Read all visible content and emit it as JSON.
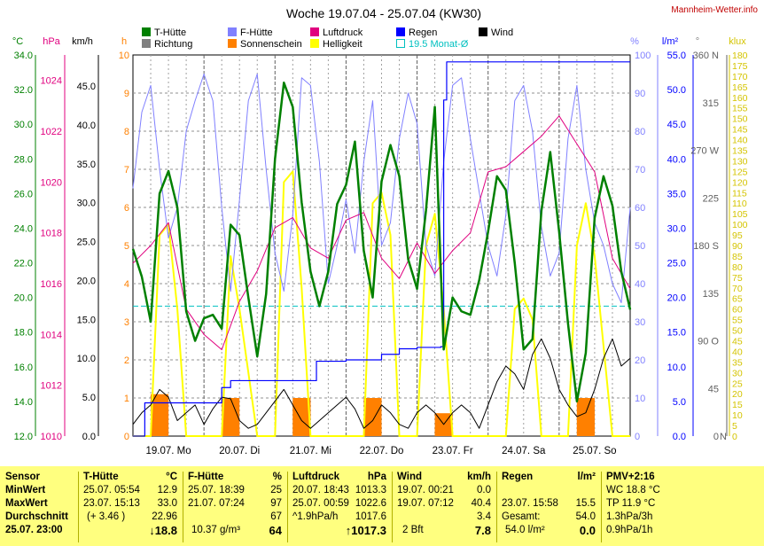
{
  "header": {
    "title": "Woche 19.07.04 - 25.07.04 (KW30)",
    "site": "Mannheim-Wetter.info"
  },
  "legend": [
    {
      "label": "T-Hütte",
      "color": "#008000",
      "box": "fill"
    },
    {
      "label": "Richtung",
      "color": "#808080",
      "box": "fill"
    },
    {
      "label": "F-Hütte",
      "color": "#8080ff",
      "box": "fill"
    },
    {
      "label": "Sonnenschein",
      "color": "#ff8000",
      "box": "fill"
    },
    {
      "label": "Luftdruck",
      "color": "#e0007f",
      "box": "fill"
    },
    {
      "label": "Helligkeit",
      "color": "#ffff00",
      "box": "fill"
    },
    {
      "label": "Regen",
      "color": "#0000ff",
      "box": "fill"
    },
    {
      "label": "19.5 Monat-Ø",
      "color": "#00c0c0",
      "box": "outline"
    },
    {
      "label": "Wind",
      "color": "#000000",
      "box": "fill"
    }
  ],
  "axes": {
    "temp": {
      "unit": "°C",
      "ticks": [
        "12.0",
        "14.0",
        "16.0",
        "18.0",
        "20.0",
        "22.0",
        "24.0",
        "26.0",
        "28.0",
        "30.0",
        "32.0",
        "34.0"
      ],
      "min": 12,
      "max": 34
    },
    "pressure": {
      "unit": "hPa",
      "ticks": [
        "1010",
        "1012",
        "1014",
        "1016",
        "1018",
        "1020",
        "1022",
        "1024"
      ],
      "min": 1010,
      "max": 1025
    },
    "wind": {
      "unit": "km/h",
      "ticks": [
        "0.0",
        "5.0",
        "10.0",
        "15.0",
        "20.0",
        "25.0",
        "30.0",
        "35.0",
        "40.0",
        "45.0"
      ],
      "min": 0,
      "max": 49
    },
    "sun": {
      "unit": "h",
      "ticks": [
        "0",
        "1",
        "2",
        "3",
        "4",
        "5",
        "6",
        "7",
        "8",
        "9",
        "10"
      ],
      "min": 0,
      "max": 10
    },
    "humidity": {
      "unit": "%",
      "ticks": [
        "0",
        "10",
        "20",
        "30",
        "40",
        "50",
        "60",
        "70",
        "80",
        "90",
        "100"
      ],
      "min": 0,
      "max": 100
    },
    "rain": {
      "unit": "l/m²",
      "ticks": [
        "0.0",
        "5.0",
        "10.0",
        "15.0",
        "20.0",
        "25.0",
        "30.0",
        "35.0",
        "40.0",
        "45.0",
        "50.0",
        "55.0"
      ],
      "min": 0,
      "max": 55
    },
    "direction": {
      "unit": "°",
      "ticks": [
        "0",
        "45",
        "90 O",
        "135",
        "180 S",
        "225",
        "270 W",
        "315",
        "360 N"
      ],
      "min": 0,
      "max": 360
    },
    "direction_right": {
      "ticks": [
        "N",
        "",
        "",
        "",
        "",
        "",
        "",
        "",
        ""
      ]
    },
    "lux": {
      "unit": "klux",
      "ticks": [
        "0",
        "5",
        "10",
        "15",
        "20",
        "25",
        "30",
        "35",
        "40",
        "45",
        "50",
        "55",
        "60",
        "65",
        "70",
        "75",
        "80",
        "85",
        "90",
        "95",
        "100",
        "105",
        "110",
        "115",
        "120",
        "125",
        "130",
        "135",
        "140",
        "145",
        "150",
        "155",
        "160",
        "165",
        "170",
        "175",
        "180"
      ],
      "min": 0,
      "max": 180
    }
  },
  "days": [
    "19.07. Mo",
    "20.07. Di",
    "21.07. Mi",
    "22.07. Do",
    "23.07. Fr",
    "24.07. Sa",
    "25.07. So"
  ],
  "chart_data": {
    "type": "line",
    "title": "Woche 19.07.04 - 25.07.04 (KW30)",
    "x_unit": "hours since 19.07. 00:00",
    "x_range": [
      0,
      168
    ],
    "monthly_avg_temp": 19.5,
    "series": [
      {
        "name": "T-Hütte",
        "unit": "°C",
        "x": [
          0,
          3,
          6,
          9,
          12,
          15,
          18,
          21,
          24,
          27,
          30,
          33,
          36,
          39,
          42,
          45,
          48,
          51,
          54,
          57,
          60,
          63,
          66,
          69,
          72,
          75,
          78,
          81,
          84,
          87,
          90,
          93,
          96,
          99,
          102,
          105,
          108,
          111,
          114,
          117,
          120,
          123,
          126,
          129,
          132,
          135,
          138,
          141,
          144,
          147,
          150,
          153,
          156,
          159,
          162,
          165,
          168
        ],
        "y": [
          22.8,
          21.2,
          18.6,
          26.0,
          27.3,
          25.2,
          19.2,
          17.5,
          18.8,
          19.0,
          18.2,
          24.2,
          23.6,
          20.0,
          16.6,
          20.2,
          28.0,
          32.4,
          31.0,
          25.5,
          21.5,
          19.5,
          21.5,
          25.4,
          26.5,
          29.0,
          22.7,
          20.0,
          26.7,
          28.8,
          27.0,
          22.2,
          20.5,
          25.0,
          31.0,
          17.0,
          20.0,
          19.2,
          19.0,
          21.0,
          23.8,
          27.0,
          26.2,
          22.0,
          17.0,
          17.6,
          25.0,
          28.4,
          23.8,
          18.5,
          14.0,
          16.8,
          24.6,
          27.0,
          25.3,
          21.5,
          19.3
        ]
      },
      {
        "name": "F-Hütte",
        "unit": "%",
        "x": [
          0,
          3,
          6,
          9,
          12,
          15,
          18,
          21,
          24,
          27,
          30,
          33,
          36,
          39,
          42,
          45,
          48,
          51,
          54,
          57,
          60,
          63,
          66,
          69,
          72,
          75,
          78,
          81,
          84,
          87,
          90,
          93,
          96,
          99,
          102,
          105,
          108,
          111,
          114,
          117,
          120,
          123,
          126,
          129,
          132,
          135,
          138,
          141,
          144,
          147,
          150,
          153,
          156,
          159,
          162,
          165,
          168
        ],
        "y": [
          65,
          85,
          92,
          70,
          52,
          60,
          80,
          88,
          95,
          88,
          60,
          38,
          62,
          88,
          95,
          70,
          48,
          38,
          58,
          94,
          92,
          72,
          40,
          50,
          62,
          48,
          72,
          88,
          50,
          56,
          78,
          90,
          82,
          50,
          42,
          72,
          92,
          94,
          78,
          64,
          50,
          42,
          58,
          88,
          92,
          80,
          55,
          42,
          48,
          78,
          92,
          70,
          56,
          50,
          40,
          35,
          60
        ]
      },
      {
        "name": "Luftdruck",
        "unit": "hPa",
        "x": [
          0,
          6,
          12,
          18,
          24,
          30,
          36,
          42,
          48,
          54,
          60,
          66,
          72,
          78,
          84,
          90,
          96,
          102,
          108,
          114,
          120,
          126,
          132,
          138,
          144,
          150,
          156,
          162,
          168
        ],
        "y": [
          1016.8,
          1017.5,
          1018.4,
          1015.0,
          1014.0,
          1013.4,
          1015.3,
          1016.5,
          1018.2,
          1018.6,
          1017.4,
          1017.0,
          1018.5,
          1018.8,
          1017.0,
          1016.2,
          1017.6,
          1016.4,
          1017.3,
          1018.0,
          1020.4,
          1020.6,
          1021.2,
          1021.8,
          1022.6,
          1021.5,
          1020.4,
          1017.0,
          1015.8
        ]
      },
      {
        "name": "Regen",
        "unit": "l/m²",
        "x": [
          0,
          3,
          4,
          12,
          25,
          30,
          33,
          48,
          60,
          62,
          72,
          84,
          90,
          96,
          102,
          104,
          105,
          106,
          108,
          120,
          168
        ],
        "y": [
          0,
          0,
          4.8,
          4.8,
          4.8,
          7.0,
          8.0,
          8.0,
          8.0,
          10.8,
          11.0,
          11.8,
          12.6,
          12.8,
          12.8,
          12.9,
          48.5,
          54.0,
          54.0,
          54.0,
          54.0
        ]
      },
      {
        "name": "Wind",
        "unit": "km/h",
        "x": [
          0,
          3,
          6,
          9,
          12,
          15,
          18,
          21,
          24,
          27,
          30,
          33,
          36,
          39,
          42,
          45,
          48,
          51,
          54,
          57,
          60,
          63,
          66,
          69,
          72,
          75,
          78,
          81,
          84,
          87,
          90,
          93,
          96,
          99,
          102,
          105,
          108,
          111,
          114,
          117,
          120,
          123,
          126,
          129,
          132,
          135,
          138,
          141,
          144,
          147,
          150,
          153,
          156,
          159,
          162,
          165,
          168
        ],
        "y": [
          1.5,
          3.0,
          4.0,
          6.0,
          5.0,
          2.0,
          3.0,
          4.0,
          1.5,
          3.5,
          5.0,
          4.8,
          2.0,
          1.0,
          1.5,
          3.0,
          4.5,
          6.0,
          4.0,
          2.0,
          1.0,
          2.0,
          3.0,
          4.0,
          5.0,
          3.5,
          1.0,
          2.0,
          4.0,
          3.0,
          1.5,
          1.0,
          3.0,
          4.0,
          3.0,
          1.5,
          3.0,
          4.0,
          3.0,
          1.0,
          4.0,
          7.0,
          9.0,
          8.0,
          6.0,
          10.5,
          12.5,
          10.0,
          6.0,
          4.0,
          2.5,
          3.0,
          6.0,
          10.0,
          12.5,
          9.0,
          10.0
        ]
      },
      {
        "name": "Sonnenschein",
        "unit": "h",
        "x": [
          0,
          12,
          24,
          36,
          48,
          60,
          72,
          84,
          96,
          108,
          120,
          132,
          144,
          156,
          168
        ],
        "y": [
          1.1,
          1.0,
          0.2,
          1.0,
          1.0,
          0.9,
          0.3,
          1.0,
          0.2,
          0.6,
          0,
          0,
          1.0,
          1.0,
          0
        ]
      },
      {
        "name": "Helligkeit",
        "unit": "klux",
        "x": [
          0,
          6,
          9,
          12,
          15,
          18,
          24,
          30,
          33,
          36,
          39,
          42,
          48,
          51,
          54,
          57,
          60,
          66,
          72,
          78,
          81,
          84,
          87,
          90,
          96,
          99,
          102,
          105,
          108,
          114,
          120,
          126,
          129,
          132,
          135,
          138,
          144,
          147,
          150,
          153,
          156,
          162,
          168
        ],
        "y": [
          0,
          0,
          95,
          100,
          60,
          0,
          0,
          0,
          85,
          60,
          30,
          0,
          0,
          120,
          125,
          70,
          0,
          0,
          0,
          0,
          110,
          115,
          95,
          0,
          0,
          90,
          105,
          60,
          0,
          0,
          0,
          0,
          60,
          65,
          55,
          0,
          0,
          0,
          90,
          110,
          85,
          0,
          0
        ]
      }
    ]
  },
  "panel": {
    "sensor": {
      "head": "Sensor",
      "rows": [
        "MinWert",
        "MaxWert",
        "Durchschnitt",
        "25.07. 23:00"
      ]
    },
    "temp": {
      "head": "T-Hütte",
      "unit": "°C",
      "min_time": "25.07.  05:54",
      "min_val": "12.9",
      "max_time": "23.07.  15:13",
      "max_val": "33.0",
      "avg_note": "(+ 3.46 )",
      "avg_val": "22.96",
      "cur_val": "↓18.8"
    },
    "humidity": {
      "head": "F-Hütte",
      "unit": "%",
      "min_time": "25.07.  18:39",
      "min_val": "25",
      "max_time": "21.07.  07:24",
      "max_val": "97",
      "avg_val": "67",
      "cur_note": "10.37 g/m³",
      "cur_val": "64"
    },
    "pressure": {
      "head": "Luftdruck",
      "unit": "hPa",
      "min_time": "20.07.  18:43",
      "min_val": "1013.3",
      "max_time": "25.07.  00:59",
      "max_val": "1022.6",
      "avg_note": "^1.9hPa/h",
      "avg_val": "1017.6",
      "cur_val": "↑1017.3"
    },
    "wind": {
      "head": "Wind",
      "unit": "km/h",
      "min_time": "19.07.  00:21",
      "min_val": "0.0",
      "max_time": "19.07.  07:12",
      "max_val": "40.4",
      "avg_val": "3.4",
      "cur_note": "2 Bft",
      "cur_val": "7.8"
    },
    "rain": {
      "head": "Regen",
      "unit": "l/m²",
      "max_time": "23.07.  15:58",
      "max_val": "15.5",
      "avg_label": "Gesamt:",
      "avg_val": "54.0",
      "cur_note": "54.0 l/m²",
      "cur_val": "0.0"
    },
    "pmv": {
      "head": "PMV+2:16",
      "r1": "WC 18.8 °C",
      "r2": "TP 11.9 °C",
      "r3": "1.3hPa/3h",
      "r4": "0.9hPa/1h"
    }
  }
}
